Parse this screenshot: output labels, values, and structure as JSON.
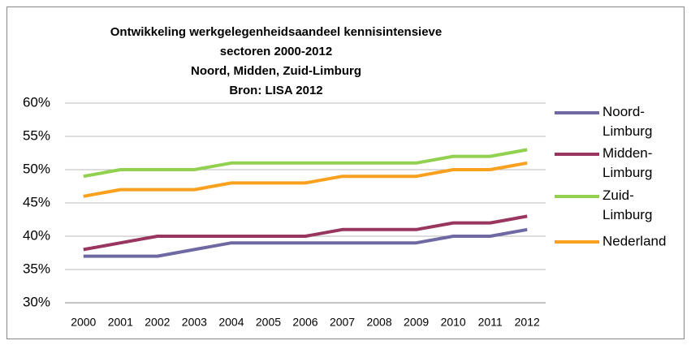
{
  "chart_data": {
    "type": "line",
    "title": [
      "Ontwikkeling werkgelegenheidsaandeel kennisintensieve",
      "sectoren 2000-2012",
      "Noord, Midden, Zuid-Limburg",
      "Bron: LISA 2012"
    ],
    "categories": [
      "2000",
      "2001",
      "2002",
      "2003",
      "2004",
      "2005",
      "2006",
      "2007",
      "2008",
      "2009",
      "2010",
      "2011",
      "2012"
    ],
    "series": [
      {
        "name": "Noord-Limburg",
        "color": "#6e69a2",
        "values": [
          37,
          37,
          37,
          38,
          39,
          39,
          39,
          39,
          39,
          39,
          40,
          40,
          41
        ]
      },
      {
        "name": "Midden-Limburg",
        "color": "#98365f",
        "values": [
          38,
          39,
          40,
          40,
          40,
          40,
          40,
          41,
          41,
          41,
          42,
          42,
          43
        ]
      },
      {
        "name": "Zuid-Limburg",
        "color": "#92d050",
        "values": [
          49,
          50,
          50,
          50,
          51,
          51,
          51,
          51,
          51,
          51,
          52,
          52,
          53
        ]
      },
      {
        "name": "Nederland",
        "color": "#f9a11f",
        "values": [
          46,
          47,
          47,
          47,
          48,
          48,
          48,
          49,
          49,
          49,
          50,
          50,
          51
        ]
      }
    ],
    "ylim": [
      30,
      60
    ],
    "yticks": [
      {
        "value": 30,
        "label": "30%"
      },
      {
        "value": 35,
        "label": "35%"
      },
      {
        "value": 40,
        "label": "40%"
      },
      {
        "value": 45,
        "label": "45%"
      },
      {
        "value": 50,
        "label": "50%"
      },
      {
        "value": 55,
        "label": "55%"
      },
      {
        "value": 60,
        "label": "60%"
      }
    ],
    "grid": true,
    "legend": "right"
  }
}
